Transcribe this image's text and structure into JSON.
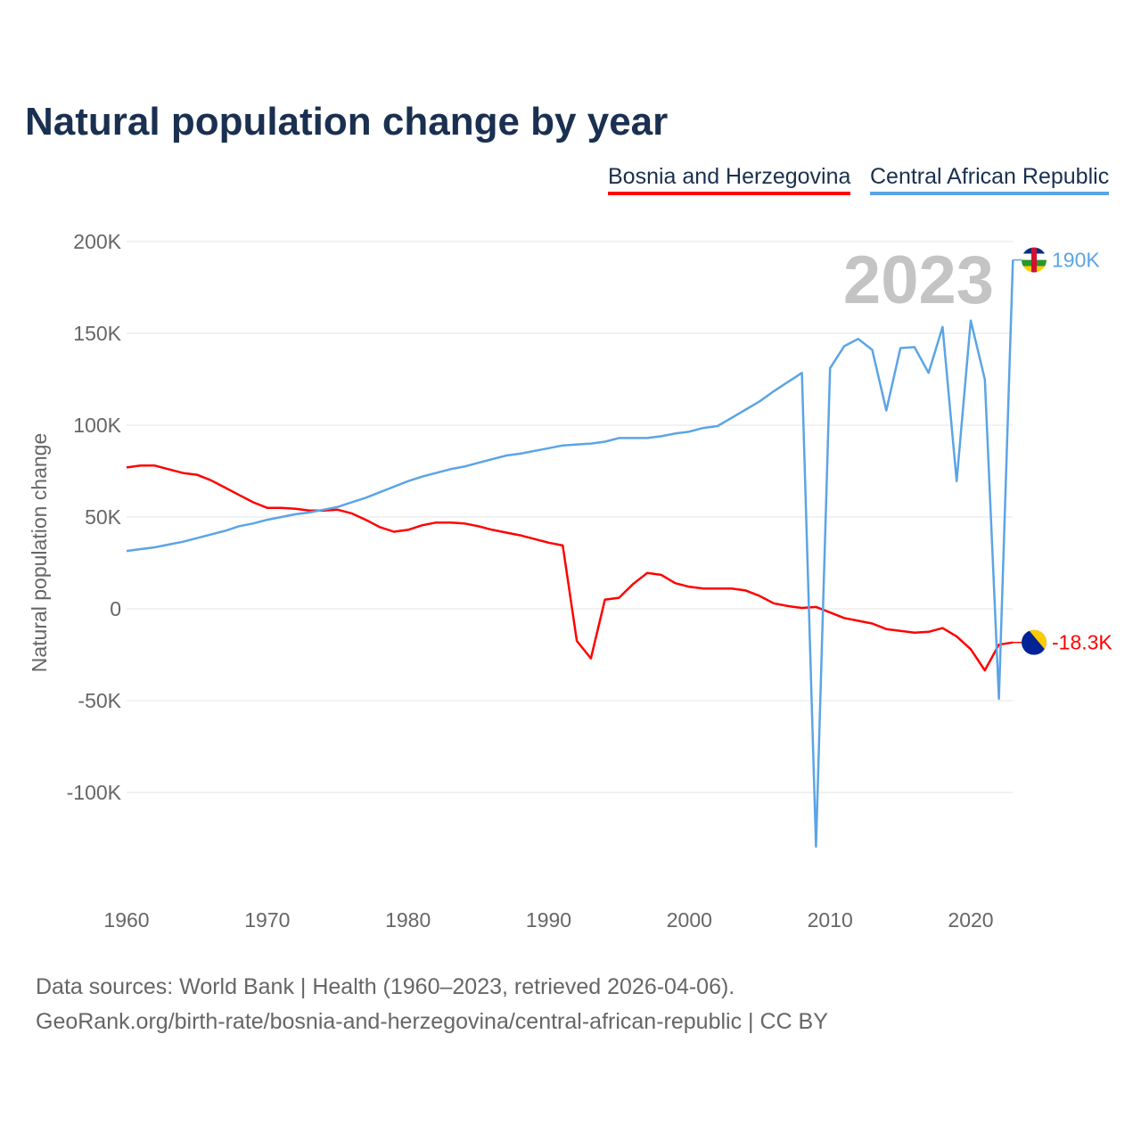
{
  "title": "Natural population change by year",
  "footer": {
    "line1": "Data sources: World Bank | Health (1960–2023, retrieved 2026-04-06).",
    "line2": "GeoRank.org/birth-rate/bosnia-and-herzegovina/central-african-republic | CC BY"
  },
  "chart_data": {
    "type": "line",
    "title": "Natural population change by year",
    "xlabel": "",
    "ylabel": "Natural population change",
    "xlim": [
      1960,
      2023
    ],
    "ylim": [
      -150,
      200
    ],
    "x_ticks": [
      "1960",
      "1970",
      "1980",
      "1990",
      "2000",
      "2010",
      "2020"
    ],
    "y_ticks": [
      {
        "v": 200,
        "label": "200K"
      },
      {
        "v": 150,
        "label": "150K"
      },
      {
        "v": 100,
        "label": "100K"
      },
      {
        "v": 50,
        "label": "50K"
      },
      {
        "v": 0,
        "label": "0"
      },
      {
        "v": -50,
        "label": "-50K"
      },
      {
        "v": -100,
        "label": "-100K"
      }
    ],
    "year_label": "2023",
    "grid": true,
    "legend": "top-right",
    "units": "thousands",
    "start_year": 1960,
    "series": [
      {
        "name": "Bosnia and Herzegovina",
        "color": "#ff0000",
        "end_label": "-18.3K",
        "flag": "bosnia-flag-icon",
        "values": [
          77,
          78,
          78,
          76,
          74,
          73,
          70,
          66,
          62,
          58,
          55,
          55,
          54.5,
          53.5,
          53.5,
          54,
          52,
          48.5,
          44.5,
          42,
          43,
          45.5,
          47,
          47,
          46.5,
          45,
          43,
          41.5,
          40,
          38,
          36,
          34.5,
          -17.5,
          -27,
          5,
          6,
          13.5,
          19.5,
          18.5,
          14,
          12,
          11,
          11,
          11,
          10,
          7,
          3,
          1.5,
          0.5,
          1,
          -2,
          -5,
          -6.5,
          -8,
          -11,
          -12,
          -13,
          -12.5,
          -10.5,
          -15,
          -22,
          -33.5,
          -19.5,
          -18.3
        ]
      },
      {
        "name": "Central African Republic",
        "color": "#5ba4e6",
        "end_label": "190K",
        "flag": "car-flag-icon",
        "values": [
          31.5,
          32.5,
          33.5,
          35,
          36.5,
          38.5,
          40.5,
          42.5,
          45,
          46.5,
          48.5,
          50,
          51.5,
          52.5,
          54,
          55.5,
          58,
          60.5,
          63.5,
          66.5,
          69.5,
          72,
          74,
          76,
          77.5,
          79.5,
          81.5,
          83.5,
          84.5,
          86,
          87.5,
          89,
          89.5,
          90,
          91,
          93,
          93,
          93,
          94,
          95.5,
          96.5,
          98.5,
          99.5,
          104,
          108.5,
          113,
          118.5,
          123.5,
          128.5,
          -129.5,
          131,
          143,
          147,
          141,
          108,
          142,
          142.5,
          128.5,
          153.5,
          69.5,
          157,
          125,
          -49,
          190
        ]
      }
    ]
  }
}
